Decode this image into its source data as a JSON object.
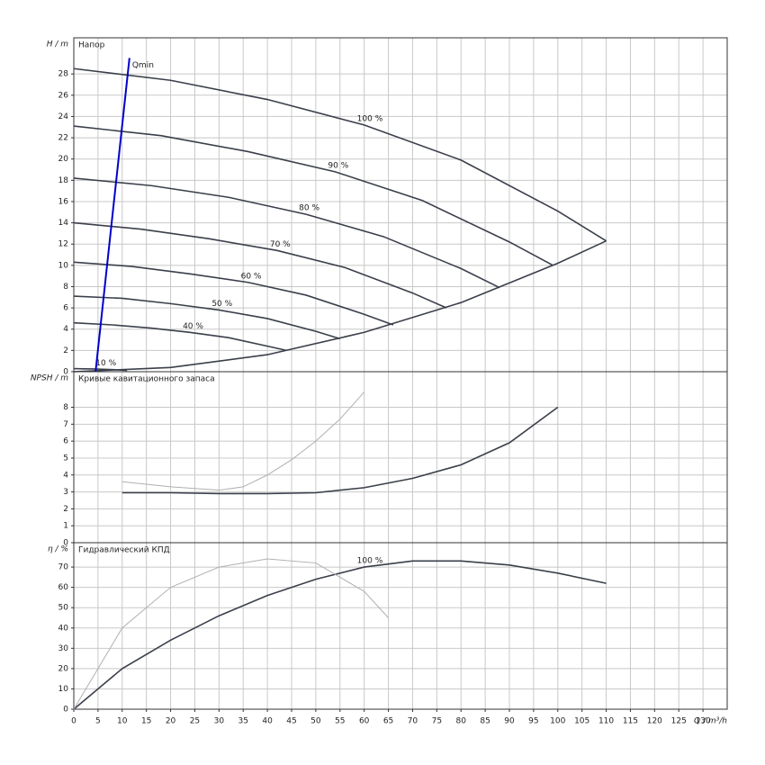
{
  "chart_data": [
    {
      "type": "line",
      "y_label": "H / m",
      "title": "Напор",
      "xlim": [
        0,
        135
      ],
      "ylim": [
        0,
        31.4
      ],
      "yticks": [
        0,
        2,
        4,
        6,
        8,
        10,
        12,
        14,
        16,
        18,
        20,
        22,
        24,
        26,
        28
      ],
      "grid": true,
      "series": [
        {
          "name": "100 %",
          "color": "#3a3f4a",
          "x": [
            0,
            20,
            40,
            60,
            80,
            100,
            110
          ],
          "values": [
            28.5,
            27.4,
            25.6,
            23.2,
            19.9,
            15.1,
            12.3
          ]
        },
        {
          "name": "90 %",
          "color": "#3a3f4a",
          "x": [
            0,
            18,
            36,
            54,
            72,
            90,
            99
          ],
          "values": [
            23.1,
            22.2,
            20.7,
            18.8,
            16.1,
            12.2,
            10.0
          ]
        },
        {
          "name": "80 %",
          "color": "#3a3f4a",
          "x": [
            0,
            16,
            32,
            48,
            64,
            80,
            88
          ],
          "values": [
            18.2,
            17.5,
            16.4,
            14.8,
            12.7,
            9.7,
            7.9
          ]
        },
        {
          "name": "70 %",
          "color": "#3a3f4a",
          "x": [
            0,
            14,
            28,
            42,
            56,
            70,
            77
          ],
          "values": [
            14.0,
            13.4,
            12.5,
            11.4,
            9.8,
            7.4,
            6.0
          ]
        },
        {
          "name": "60 %",
          "color": "#3a3f4a",
          "x": [
            0,
            12,
            24,
            36,
            48,
            60,
            66
          ],
          "values": [
            10.3,
            9.9,
            9.2,
            8.4,
            7.2,
            5.4,
            4.4
          ]
        },
        {
          "name": "50 %",
          "color": "#3a3f4a",
          "x": [
            0,
            10,
            20,
            30,
            40,
            50,
            55
          ],
          "values": [
            7.1,
            6.9,
            6.4,
            5.8,
            5.0,
            3.8,
            3.1
          ]
        },
        {
          "name": "40 %",
          "color": "#3a3f4a",
          "x": [
            0,
            8,
            16,
            24,
            32,
            40,
            44
          ],
          "values": [
            4.6,
            4.4,
            4.1,
            3.7,
            3.2,
            2.4,
            2.0
          ]
        },
        {
          "name": "10 %",
          "color": "#3a3f4a",
          "x": [
            0,
            2,
            4,
            6,
            8,
            10,
            11
          ],
          "values": [
            0.29,
            0.27,
            0.26,
            0.23,
            0.2,
            0.15,
            0.12
          ]
        },
        {
          "color": "#3a3f4a",
          "x": [
            0,
            20,
            40,
            60,
            80,
            100,
            110
          ],
          "values": [
            0,
            0.4,
            1.6,
            3.7,
            6.5,
            10.2,
            12.3
          ]
        },
        {
          "name": "Qmin",
          "color": "#0000cc",
          "x": [
            4.5,
            11.5
          ],
          "values": [
            0,
            29.5
          ]
        }
      ]
    },
    {
      "type": "line",
      "y_label": "NPSH / m",
      "title": "Кривые кавитационного запаса",
      "xlim": [
        0,
        135
      ],
      "ylim": [
        0,
        10.1
      ],
      "yticks": [
        0,
        1,
        2,
        3,
        4,
        5,
        6,
        7,
        8
      ],
      "grid": true,
      "series": [
        {
          "color": "#3a3f4a",
          "x": [
            10,
            20,
            30,
            40,
            50,
            60,
            70,
            80,
            90,
            100
          ],
          "values": [
            2.95,
            2.95,
            2.9,
            2.9,
            2.95,
            3.25,
            3.8,
            4.6,
            5.9,
            8.0
          ]
        },
        {
          "color": "#b0b0b0",
          "x": [
            10,
            20,
            30,
            35,
            40,
            45,
            50,
            55,
            60
          ],
          "values": [
            3.6,
            3.3,
            3.1,
            3.3,
            4.0,
            4.9,
            6.0,
            7.3,
            8.9
          ]
        }
      ]
    },
    {
      "type": "line",
      "y_label": "η / %",
      "title": "Гидравлический КПД",
      "x_label": "Q / m³/h",
      "xlim": [
        0,
        135
      ],
      "ylim": [
        0,
        82
      ],
      "yticks": [
        0,
        10,
        20,
        30,
        40,
        50,
        60,
        70
      ],
      "xticks": [
        0,
        5,
        10,
        15,
        20,
        25,
        30,
        35,
        40,
        45,
        50,
        55,
        60,
        65,
        70,
        75,
        80,
        85,
        90,
        95,
        100,
        105,
        110,
        115,
        120,
        125,
        130
      ],
      "grid": true,
      "series": [
        {
          "name": "100 %",
          "color": "#3a3f4a",
          "x": [
            0,
            10,
            20,
            30,
            40,
            50,
            60,
            70,
            80,
            90,
            100,
            110
          ],
          "values": [
            0,
            20,
            34,
            46,
            56,
            64,
            70,
            73,
            73,
            71,
            67,
            62
          ]
        },
        {
          "color": "#b0b0b0",
          "x": [
            0,
            10,
            20,
            30,
            40,
            50,
            60,
            65
          ],
          "values": [
            0,
            40,
            60,
            70,
            74,
            72,
            58,
            45
          ]
        }
      ]
    }
  ]
}
